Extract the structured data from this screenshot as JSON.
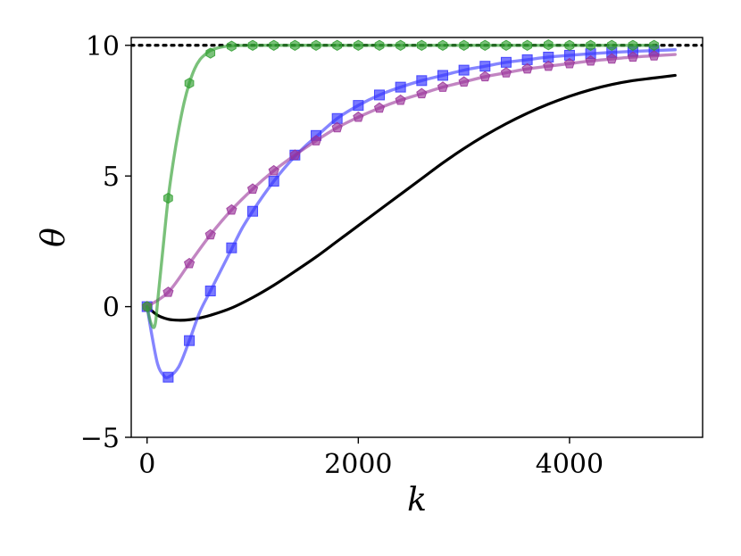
{
  "chart_data": {
    "type": "line",
    "xlabel": "k",
    "ylabel": "θ",
    "xlim": [
      -150,
      5260
    ],
    "ylim": [
      -5,
      10.3
    ],
    "x_ticks": [
      0,
      2000,
      4000
    ],
    "x_tick_labels": [
      "0",
      "2000",
      "4000"
    ],
    "y_ticks": [
      -5,
      0,
      5,
      10
    ],
    "y_tick_labels": [
      "−5",
      "0",
      "5",
      "10"
    ],
    "grid": false,
    "legend": "none",
    "reference_line": {
      "y": 10,
      "style": "dotted",
      "color": "#000000"
    },
    "series": [
      {
        "marker": "none",
        "color": "#000000",
        "line_alpha": 1.0,
        "x": [
          0,
          100,
          200,
          300,
          400,
          500,
          600,
          800,
          1000,
          1200,
          1400,
          1600,
          1800,
          2000,
          2200,
          2400,
          2600,
          2800,
          3000,
          3200,
          3400,
          3600,
          3800,
          4000,
          4200,
          4400,
          4600,
          4800,
          5000
        ],
        "y": [
          0,
          -0.33,
          -0.48,
          -0.52,
          -0.5,
          -0.43,
          -0.33,
          -0.05,
          0.35,
          0.82,
          1.35,
          1.9,
          2.5,
          3.1,
          3.7,
          4.3,
          4.9,
          5.5,
          6.05,
          6.55,
          7.0,
          7.4,
          7.75,
          8.05,
          8.3,
          8.5,
          8.65,
          8.75,
          8.85
        ]
      },
      {
        "marker": "square",
        "color": "#3333ff",
        "line_alpha": 0.6,
        "x": [
          0,
          50,
          100,
          150,
          200,
          300,
          400,
          500,
          600,
          700,
          800,
          900,
          1000,
          1100,
          1200,
          1300,
          1400,
          1500,
          1600,
          1800,
          2000,
          2200,
          2400,
          2600,
          2800,
          3000,
          3200,
          3400,
          3600,
          3800,
          4000,
          4200,
          4400,
          4600,
          4800,
          5000
        ],
        "y": [
          0,
          -1.2,
          -2.2,
          -2.6,
          -2.7,
          -2.3,
          -1.3,
          -0.2,
          0.6,
          1.4,
          2.2,
          3.0,
          3.65,
          4.25,
          4.8,
          5.3,
          5.75,
          6.15,
          6.5,
          7.2,
          7.7,
          8.1,
          8.4,
          8.65,
          8.85,
          9.05,
          9.2,
          9.35,
          9.45,
          9.55,
          9.62,
          9.68,
          9.73,
          9.77,
          9.8,
          9.83
        ],
        "markers_x": [
          0,
          200,
          400,
          600,
          800,
          1000,
          1200,
          1400,
          1600,
          1800,
          2000,
          2200,
          2400,
          2600,
          2800,
          3000,
          3200,
          3400,
          3600,
          3800,
          4000,
          4200,
          4400,
          4600,
          4800
        ],
        "markers_y": [
          0,
          -2.7,
          -1.3,
          0.6,
          2.25,
          3.65,
          4.8,
          5.8,
          6.55,
          7.2,
          7.7,
          8.1,
          8.4,
          8.65,
          8.85,
          9.05,
          9.2,
          9.35,
          9.45,
          9.55,
          9.62,
          9.68,
          9.73,
          9.77,
          9.8
        ]
      },
      {
        "marker": "pentagon",
        "color": "#993399",
        "line_alpha": 0.6,
        "x": [
          0,
          200,
          400,
          600,
          800,
          1000,
          1200,
          1400,
          1600,
          1800,
          2000,
          2200,
          2400,
          2600,
          2800,
          3000,
          3200,
          3400,
          3600,
          3800,
          4000,
          4200,
          4400,
          4600,
          4800,
          5000
        ],
        "y": [
          0,
          0.55,
          1.65,
          2.75,
          3.7,
          4.5,
          5.2,
          5.8,
          6.35,
          6.85,
          7.25,
          7.6,
          7.9,
          8.15,
          8.4,
          8.6,
          8.8,
          8.95,
          9.1,
          9.2,
          9.3,
          9.4,
          9.48,
          9.55,
          9.6,
          9.65
        ],
        "markers_x": [
          0,
          200,
          400,
          600,
          800,
          1000,
          1200,
          1400,
          1600,
          1800,
          2000,
          2200,
          2400,
          2600,
          2800,
          3000,
          3200,
          3400,
          3600,
          3800,
          4000,
          4200,
          4400,
          4600,
          4800
        ],
        "markers_y": [
          0,
          0.55,
          1.65,
          2.75,
          3.7,
          4.5,
          5.2,
          5.8,
          6.35,
          6.85,
          7.25,
          7.6,
          7.9,
          8.15,
          8.4,
          8.6,
          8.8,
          8.95,
          9.1,
          9.2,
          9.3,
          9.4,
          9.48,
          9.55,
          9.6
        ]
      },
      {
        "marker": "hexagon",
        "color": "#33a033",
        "line_alpha": 0.65,
        "x": [
          0,
          30,
          60,
          80,
          100,
          150,
          200,
          250,
          300,
          350,
          400,
          450,
          500,
          550,
          600,
          700,
          800,
          1000,
          2000,
          3000,
          4000,
          4800
        ],
        "y": [
          0,
          -0.55,
          -0.8,
          -0.6,
          0.2,
          2.2,
          4.15,
          5.6,
          6.8,
          7.8,
          8.55,
          9.1,
          9.45,
          9.65,
          9.8,
          9.93,
          9.98,
          10,
          10,
          10,
          10,
          10
        ],
        "markers_x": [
          0,
          200,
          400,
          600,
          800,
          1000,
          1200,
          1400,
          1600,
          1800,
          2000,
          2200,
          2400,
          2600,
          2800,
          3000,
          3200,
          3400,
          3600,
          3800,
          4000,
          4200,
          4400,
          4600,
          4800
        ],
        "markers_y": [
          0,
          4.15,
          8.55,
          9.7,
          9.97,
          10,
          10,
          10,
          10,
          10,
          10,
          10,
          10,
          10,
          10,
          10,
          10,
          10,
          10,
          10.02,
          10,
          10,
          10,
          10,
          10
        ]
      }
    ]
  }
}
